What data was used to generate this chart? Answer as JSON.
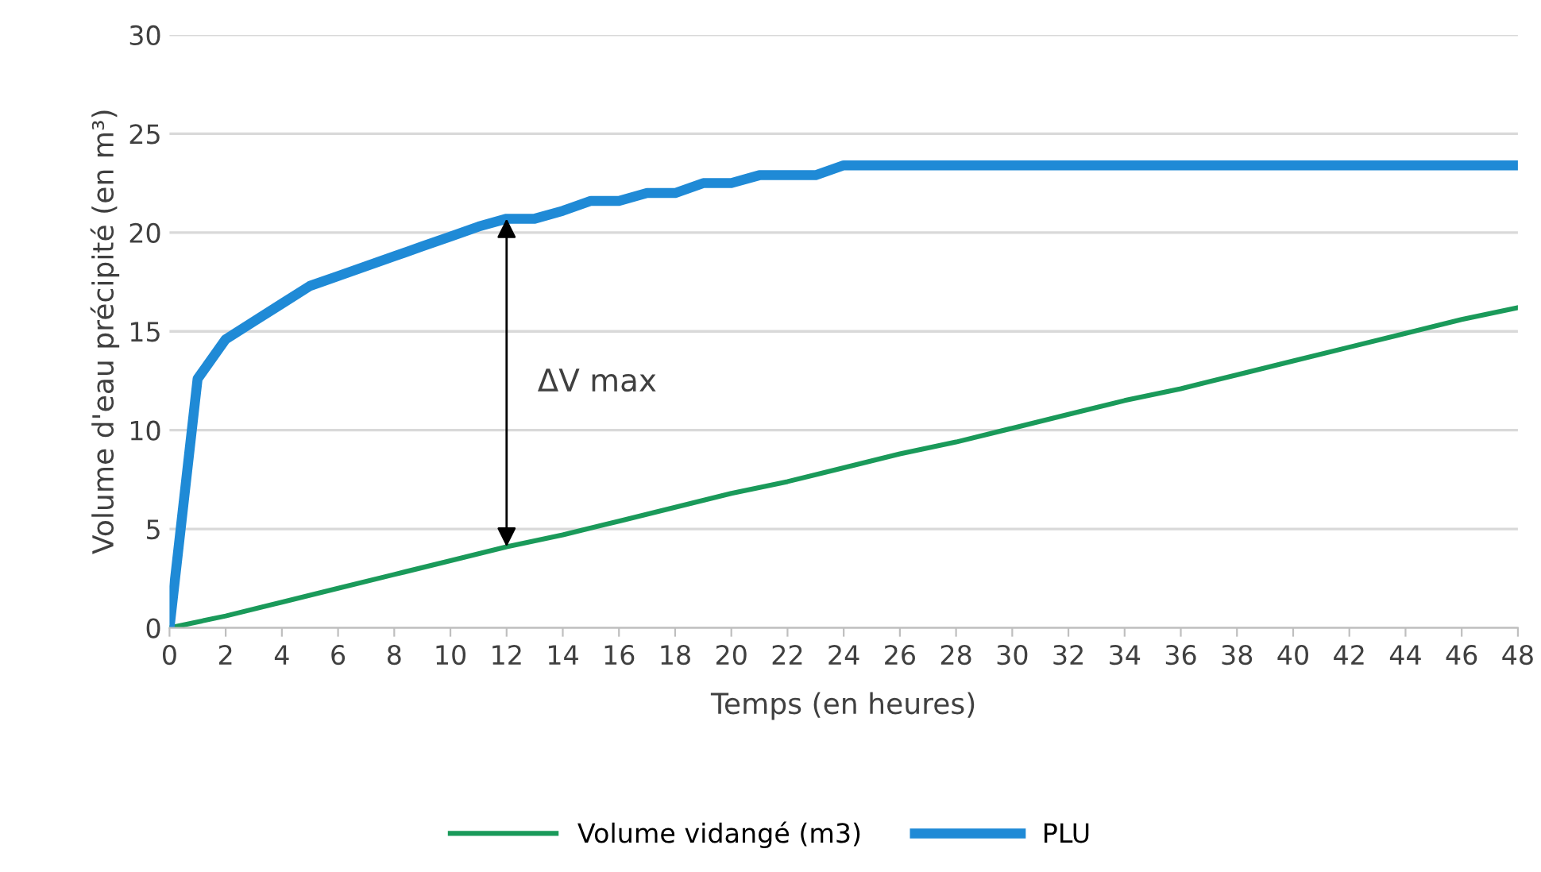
{
  "chart_data": {
    "type": "line",
    "xlabel": "Temps (en heures)",
    "ylabel": "Volume d'eau précipité (en m³)",
    "xlim": [
      0,
      48
    ],
    "xticks": [
      0,
      2,
      4,
      6,
      8,
      10,
      12,
      14,
      16,
      18,
      20,
      22,
      24,
      26,
      28,
      30,
      32,
      34,
      36,
      38,
      40,
      42,
      44,
      46,
      48
    ],
    "ylim": [
      0,
      30
    ],
    "yticks": [
      0,
      5,
      10,
      15,
      20,
      25,
      30
    ],
    "grid": "y",
    "legend": "bottom",
    "marker": "none",
    "line_style": "solid",
    "series": [
      {
        "name": "Volume vidangé (m3)",
        "color": "#1a9a5a",
        "x": [
          0,
          2,
          4,
          6,
          8,
          10,
          12,
          14,
          16,
          18,
          20,
          22,
          24,
          26,
          28,
          30,
          32,
          34,
          36,
          38,
          40,
          42,
          44,
          46,
          48
        ],
        "values": [
          0,
          0.6,
          1.3,
          2.0,
          2.7,
          3.4,
          4.1,
          4.7,
          5.4,
          6.1,
          6.8,
          7.4,
          8.1,
          8.8,
          9.4,
          10.1,
          10.8,
          11.5,
          12.1,
          12.8,
          13.5,
          14.2,
          14.9,
          15.6,
          16.2
        ]
      },
      {
        "name": "PLU",
        "color": "#1f8ad6",
        "x": [
          0,
          1,
          2,
          3,
          4,
          5,
          6,
          7,
          8,
          9,
          10,
          11,
          12,
          13,
          14,
          15,
          16,
          17,
          18,
          19,
          20,
          21,
          22,
          23,
          24,
          48
        ],
        "values": [
          0,
          12.6,
          14.6,
          15.5,
          16.4,
          17.3,
          17.8,
          18.3,
          18.8,
          19.3,
          19.8,
          20.3,
          20.7,
          20.7,
          21.1,
          21.6,
          21.6,
          22.0,
          22.0,
          22.5,
          22.5,
          22.9,
          22.9,
          22.9,
          23.4,
          23.4
        ]
      }
    ],
    "annotations": [
      "ΔV max"
    ]
  }
}
